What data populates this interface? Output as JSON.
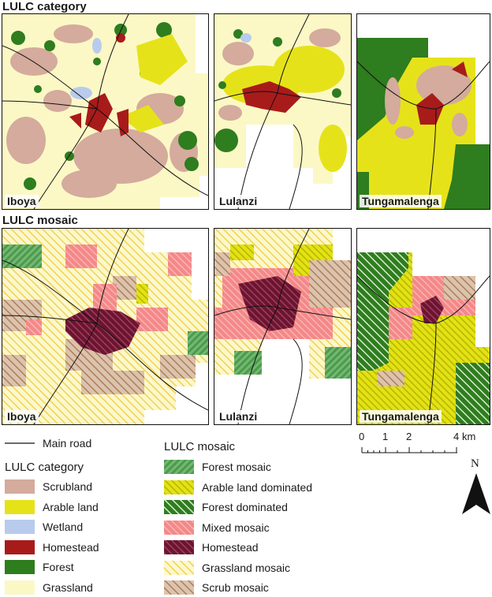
{
  "figure": {
    "top_title": "LULC category",
    "bottom_title": "LULC mosaic"
  },
  "panels": {
    "category": [
      {
        "label": "Iboya"
      },
      {
        "label": "Lulanzi"
      },
      {
        "label": "Tungamalenga"
      }
    ],
    "mosaic": [
      {
        "label": "Iboya"
      },
      {
        "label": "Lulanzi"
      },
      {
        "label": "Tungamalenga"
      }
    ]
  },
  "legend": {
    "road_label": "Main road",
    "category_title": "LULC category",
    "categories": [
      {
        "label": "Scrubland",
        "color": "#d4ab9c"
      },
      {
        "label": "Arable land",
        "color": "#e6e21a"
      },
      {
        "label": "Wetland",
        "color": "#b9cbec"
      },
      {
        "label": "Homestead",
        "color": "#a81b1b"
      },
      {
        "label": "Forest",
        "color": "#2e7d1e"
      },
      {
        "label": "Grassland",
        "color": "#fbf8c6"
      }
    ],
    "mosaic_title": "LULC mosaic",
    "mosaics": [
      {
        "label": "Forest mosaic",
        "color": "#6fb36f",
        "hatch": "#3f8f3f"
      },
      {
        "label": "Arable land dominated",
        "color": "#e3e214",
        "hatch": "#b5b400"
      },
      {
        "label": "Forest dominated",
        "color": "#2e7d1e",
        "hatch": "#ffffff"
      },
      {
        "label": "Mixed mosaic",
        "color": "#f48a8a",
        "hatch": "#f7b0b0"
      },
      {
        "label": "Homestead",
        "color": "#6b1530",
        "hatch": "#9b3a55"
      },
      {
        "label": "Grassland mosaic",
        "color": "#fbf7c8",
        "hatch": "#f2d84a"
      },
      {
        "label": "Scrub mosaic",
        "color": "#d9bfa8",
        "hatch": "#b08060"
      }
    ]
  },
  "scale": {
    "ticks": [
      "0",
      "1",
      "2",
      "4"
    ],
    "unit": "km"
  },
  "north": "N"
}
